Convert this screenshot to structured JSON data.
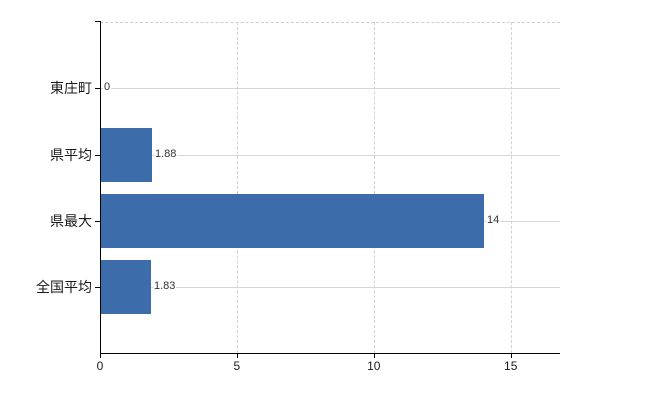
{
  "chart_data": {
    "type": "bar",
    "orientation": "horizontal",
    "title": "",
    "categories": [
      "東庄町",
      "県平均",
      "県最大",
      "全国平均"
    ],
    "values": [
      0,
      1.88,
      14,
      1.83
    ],
    "value_labels": [
      "0",
      "1.88",
      "14",
      "1.83"
    ],
    "x_ticks": [
      0,
      5,
      10,
      15
    ],
    "x_tick_labels": [
      "0",
      "5",
      "10",
      "15"
    ],
    "xlim": [
      0,
      16.8
    ],
    "grid": true,
    "legend_position": "none",
    "bar_color": "#3d6cab",
    "axis_color": "#000000",
    "row_gridline_color": "#d6d6d6",
    "dashed_gridline_color": "#d2d2d2",
    "background_color": "#ffffff"
  }
}
